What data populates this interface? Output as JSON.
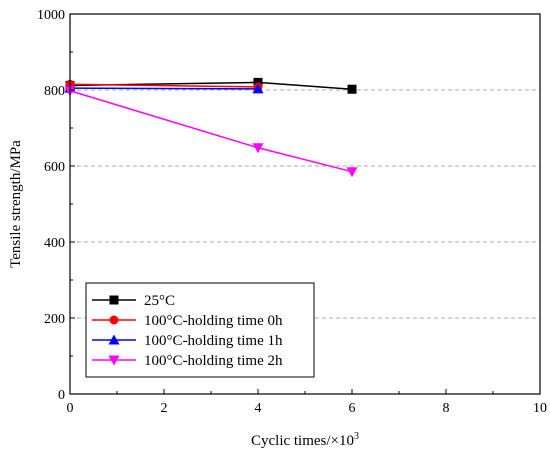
{
  "chart_data": {
    "type": "line",
    "title": "",
    "xlabel": "Cyclic times/×10",
    "xlabel_sup": "3",
    "ylabel": "Tensile strength/MPa",
    "xlim": [
      0,
      10
    ],
    "ylim": [
      0,
      1000
    ],
    "xticks": [
      0,
      2,
      4,
      6,
      8,
      10
    ],
    "yticks": [
      0,
      200,
      400,
      600,
      800,
      1000
    ],
    "grid": "horizontal dashed",
    "legend_position": "bottom-left",
    "series": [
      {
        "name": "25°C",
        "color": "#000000",
        "marker": "square",
        "x": [
          0,
          4,
          6
        ],
        "y": [
          812,
          820,
          802
        ]
      },
      {
        "name": "100°C-holding time 0h",
        "color": "#ff0000",
        "marker": "circle",
        "x": [
          0,
          4
        ],
        "y": [
          815,
          808
        ]
      },
      {
        "name": "100°C-holding time 1h",
        "color": "#0000ff",
        "marker": "triangle-up",
        "x": [
          0,
          4
        ],
        "y": [
          805,
          803
        ]
      },
      {
        "name": "100°C-holding time 2h",
        "color": "#ff00ff",
        "marker": "triangle-down",
        "x": [
          0,
          4,
          6
        ],
        "y": [
          798,
          648,
          585
        ]
      }
    ]
  }
}
